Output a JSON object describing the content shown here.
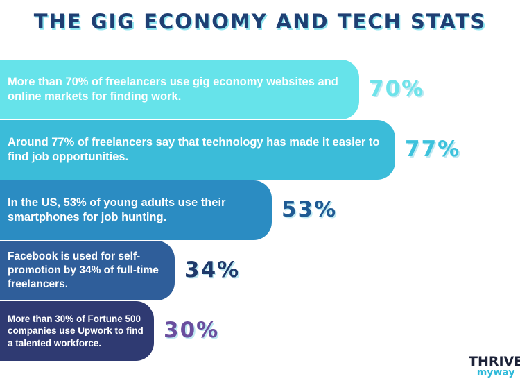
{
  "title": "THE GIG ECONOMY AND TECH STATS",
  "chart_data": {
    "type": "bar",
    "title": "THE GIG ECONOMY AND TECH STATS",
    "categories": [
      "More than 70% of freelancers use gig economy websites and online markets for finding work.",
      "Around 77% of freelancers say that technology has made it easier to find job opportunities.",
      "In the US, 53% of young adults use their smartphones for job hunting.",
      "Facebook is used for self-promotion by 34% of full-time freelancers.",
      "More than 30% of Fortune 500 companies use Upwork to find a talented workforce."
    ],
    "values": [
      70,
      77,
      53,
      34,
      30
    ],
    "value_labels": [
      "70%",
      "77%",
      "53%",
      "34%",
      "30%"
    ],
    "unit": "%",
    "bar_colors": [
      "#66e3ea",
      "#3bbcd9",
      "#2b8cc2",
      "#2f5e9a",
      "#2f3a72"
    ],
    "label_colors": [
      "#6fe3ea",
      "#3dc2dc",
      "#1f5a93",
      "#1f3a6b",
      "#6a4e9e"
    ]
  },
  "bars": [
    {
      "text": "More than 70% of freelancers use gig economy websites and online markets for finding work.",
      "pct": "70%"
    },
    {
      "text": "Around 77% of freelancers say that technology has made it easier to find job opportunities.",
      "pct": "77%"
    },
    {
      "text": "In the US, 53% of young adults use their smartphones for job hunting.",
      "pct": "53%"
    },
    {
      "text": "Facebook is used for self-promotion by 34% of full-time freelancers.",
      "pct": "34%"
    },
    {
      "text": "More than 30% of Fortune 500 companies use Upwork to find a talented workforce.",
      "pct": "30%"
    }
  ],
  "brand": {
    "top": "THRIVE",
    "bottom": "myway"
  }
}
